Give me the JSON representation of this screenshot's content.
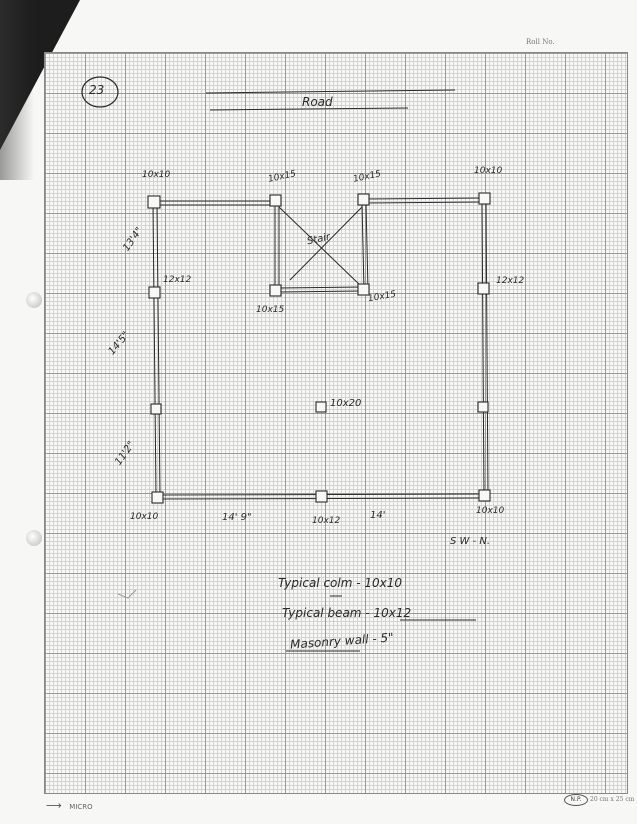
{
  "header": {
    "roll_no_label": "Roll No."
  },
  "sheet_number": "23",
  "road_label": "Road",
  "stair_label": "Stair",
  "columns": {
    "top_left": "10x10",
    "stair_top_left": "10x15",
    "stair_top_right": "10x15",
    "top_right": "10x10",
    "left_mid": "12x12",
    "stair_bottom_left": "10x15",
    "stair_bottom_right": "10x15",
    "right_mid": "12x12",
    "center": "10x20",
    "bottom_left": "10x10",
    "bottom_mid": "10x12",
    "bottom_right": "10x10"
  },
  "dimensions": {
    "left_top": "13'4\"",
    "left_mid": "14'5\"",
    "left_bottom": "11'2\"",
    "bottom_left": "14' 9\"",
    "bottom_right": "14'"
  },
  "orientation_note": "S W - N.",
  "legend": {
    "line1": "Typical colm - 10x10",
    "line2": "Typical beam - 10x12",
    "line3": "Masonry wall - 5\""
  },
  "footer": {
    "brand": "MICRO",
    "np_mark": "N.P.",
    "size": "20 cm x 25 cm"
  }
}
